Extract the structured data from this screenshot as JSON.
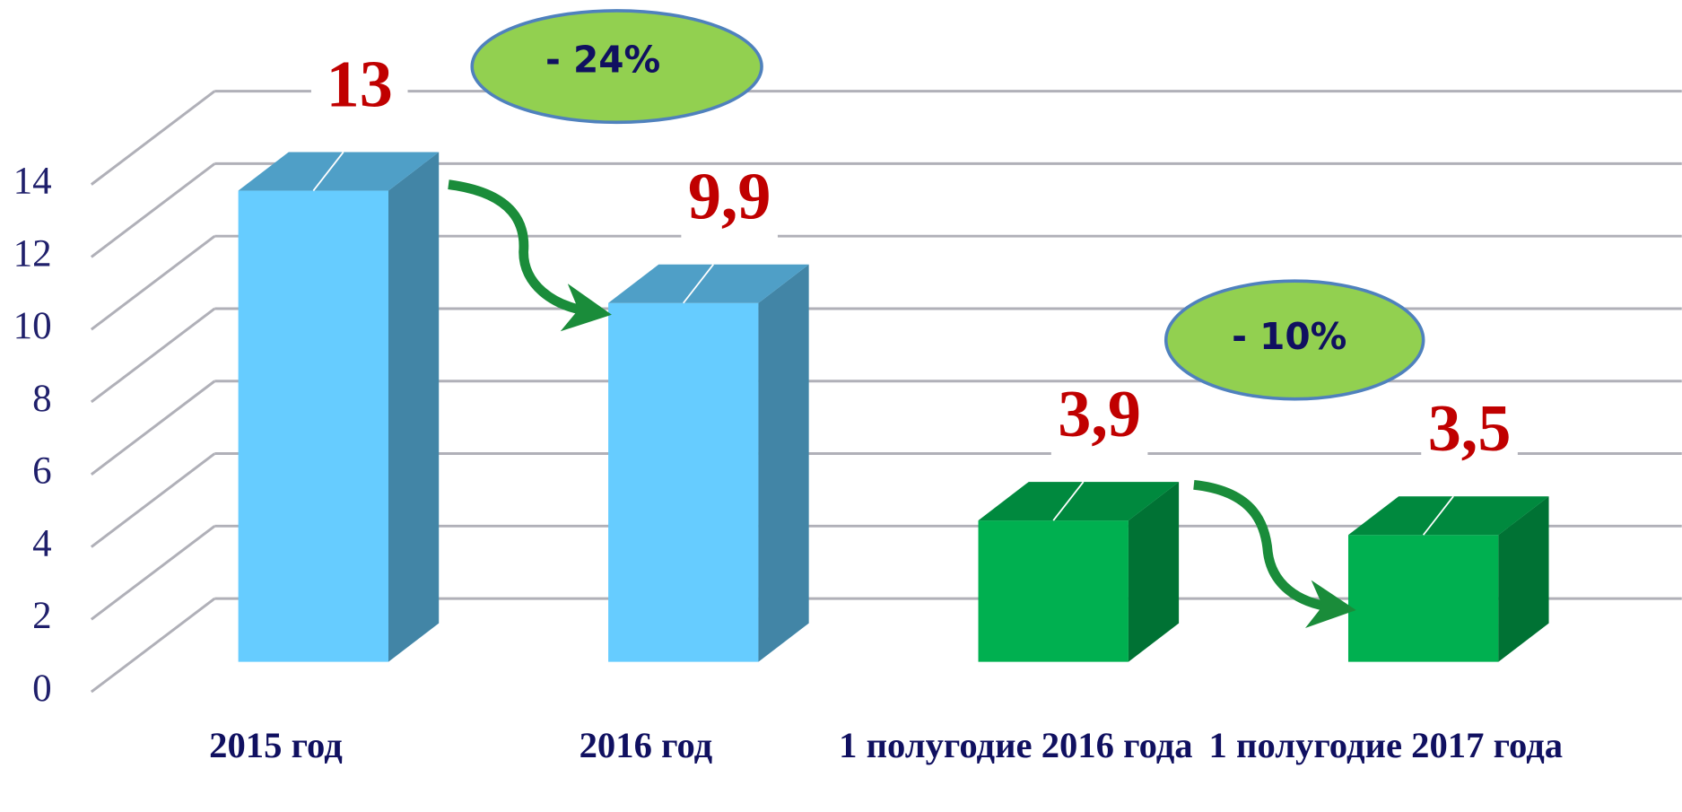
{
  "chart_data": {
    "type": "bar3d",
    "categories": [
      "2015 год",
      "2016 год",
      "1 полугодие 2016 года",
      "1 полугодие 2017 года"
    ],
    "values": [
      13,
      9.9,
      3.9,
      3.5
    ],
    "value_labels": [
      "13",
      "9,9",
      "3,9",
      "3,5"
    ],
    "colors": [
      "#66ccff",
      "#66ccff",
      "#00b050",
      "#00b050"
    ],
    "ylim": [
      0,
      14
    ],
    "yticks": [
      0,
      2,
      4,
      6,
      8,
      10,
      12,
      14
    ],
    "grid": true,
    "annotations": [
      "- 24%",
      "- 10%"
    ]
  }
}
